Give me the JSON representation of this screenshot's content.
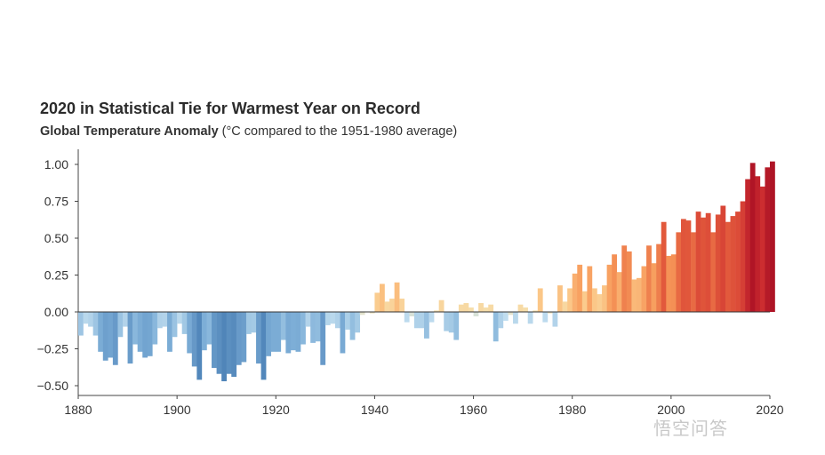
{
  "chart_data": {
    "type": "bar",
    "title": "2020 in Statistical Tie for Warmest Year on Record",
    "subtitle_bold": "Global Temperature Anomaly",
    "subtitle_rest": "(°C compared to the 1951-1980 average)",
    "xlabel": "",
    "ylabel": "",
    "ylim": [
      -0.55,
      1.1
    ],
    "yticks": [
      "1.00",
      "0.75",
      "0.50",
      "0.25",
      "0.00",
      "−0.25",
      "−0.50"
    ],
    "ytick_values": [
      1.0,
      0.75,
      0.5,
      0.25,
      0.0,
      -0.25,
      -0.5
    ],
    "xticks": [
      "1880",
      "1900",
      "1920",
      "1940",
      "1960",
      "1980",
      "2000",
      "2020"
    ],
    "xtick_values": [
      1880,
      1900,
      1920,
      1940,
      1960,
      1980,
      2000,
      2020
    ],
    "x_start": 1880,
    "x_end": 2020,
    "values": [
      -0.16,
      -0.08,
      -0.1,
      -0.16,
      -0.27,
      -0.33,
      -0.31,
      -0.36,
      -0.17,
      -0.1,
      -0.35,
      -0.22,
      -0.27,
      -0.31,
      -0.3,
      -0.22,
      -0.11,
      -0.1,
      -0.27,
      -0.17,
      -0.08,
      -0.15,
      -0.28,
      -0.37,
      -0.46,
      -0.26,
      -0.22,
      -0.38,
      -0.42,
      -0.47,
      -0.42,
      -0.44,
      -0.36,
      -0.34,
      -0.15,
      -0.14,
      -0.35,
      -0.46,
      -0.3,
      -0.27,
      -0.27,
      -0.19,
      -0.28,
      -0.26,
      -0.27,
      -0.22,
      -0.1,
      -0.21,
      -0.2,
      -0.36,
      -0.09,
      -0.08,
      -0.11,
      -0.28,
      -0.12,
      -0.19,
      -0.14,
      -0.02,
      -0.0,
      -0.01,
      0.13,
      0.19,
      0.07,
      0.09,
      0.2,
      0.09,
      -0.07,
      -0.03,
      -0.11,
      -0.11,
      -0.18,
      -0.07,
      0.01,
      0.08,
      -0.13,
      -0.14,
      -0.19,
      0.05,
      0.06,
      0.03,
      -0.03,
      0.06,
      0.03,
      0.05,
      -0.2,
      -0.11,
      -0.06,
      -0.02,
      -0.08,
      0.05,
      0.03,
      -0.08,
      0.01,
      0.16,
      -0.07,
      -0.01,
      -0.1,
      0.18,
      0.07,
      0.16,
      0.26,
      0.32,
      0.14,
      0.31,
      0.16,
      0.12,
      0.18,
      0.32,
      0.39,
      0.27,
      0.45,
      0.41,
      0.22,
      0.23,
      0.31,
      0.45,
      0.33,
      0.46,
      0.61,
      0.38,
      0.39,
      0.54,
      0.63,
      0.62,
      0.54,
      0.68,
      0.64,
      0.67,
      0.54,
      0.66,
      0.72,
      0.61,
      0.65,
      0.68,
      0.75,
      0.9,
      1.01,
      0.92,
      0.85,
      0.98,
      1.02
    ],
    "color_stops": [
      {
        "v": -0.5,
        "color": "#4a7fb5"
      },
      {
        "v": -0.25,
        "color": "#7fb0d8"
      },
      {
        "v": -0.05,
        "color": "#c3dff0"
      },
      {
        "v": 0.0,
        "color": "#f5e3b3"
      },
      {
        "v": 0.15,
        "color": "#fbc98a"
      },
      {
        "v": 0.35,
        "color": "#f79a5a"
      },
      {
        "v": 0.6,
        "color": "#e35b3c"
      },
      {
        "v": 0.85,
        "color": "#cc2d30"
      },
      {
        "v": 1.05,
        "color": "#a90f24"
      }
    ]
  },
  "watermark": "悟空问答"
}
